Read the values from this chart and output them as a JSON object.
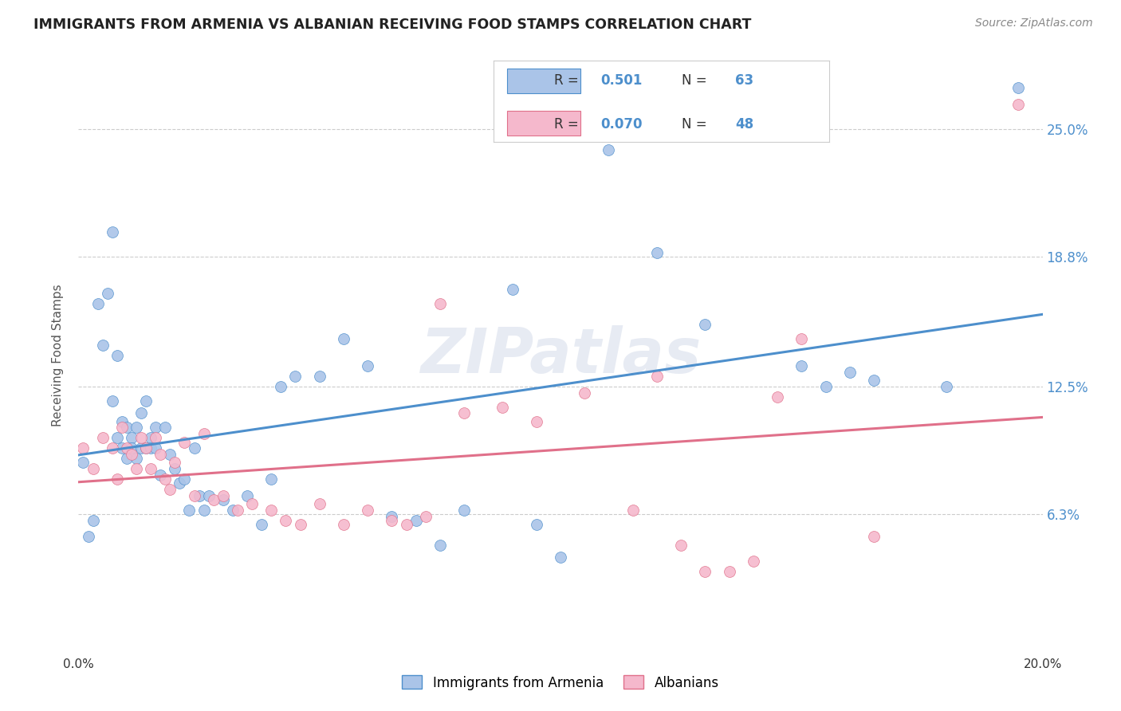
{
  "title": "IMMIGRANTS FROM ARMENIA VS ALBANIAN RECEIVING FOOD STAMPS CORRELATION CHART",
  "source": "Source: ZipAtlas.com",
  "ylabel": "Receiving Food Stamps",
  "ytick_labels": [
    "6.3%",
    "12.5%",
    "18.8%",
    "25.0%"
  ],
  "ytick_values": [
    0.063,
    0.125,
    0.188,
    0.25
  ],
  "xlim": [
    0.0,
    0.2
  ],
  "ylim": [
    -0.005,
    0.285
  ],
  "armenia_R": "0.501",
  "armenia_N": "63",
  "albania_R": "0.070",
  "albania_N": "48",
  "armenia_color": "#aac4e8",
  "albania_color": "#f5b8cc",
  "armenia_line_color": "#4d8fcc",
  "albania_line_color": "#e0708a",
  "text_blue_color": "#4d8fcc",
  "legend_label_armenia": "Immigrants from Armenia",
  "legend_label_albania": "Albanians",
  "watermark": "ZIPatlas",
  "background_color": "#ffffff",
  "armenia_x": [
    0.001,
    0.002,
    0.003,
    0.004,
    0.005,
    0.006,
    0.007,
    0.007,
    0.008,
    0.008,
    0.009,
    0.009,
    0.01,
    0.01,
    0.011,
    0.011,
    0.012,
    0.012,
    0.013,
    0.013,
    0.014,
    0.014,
    0.015,
    0.015,
    0.016,
    0.016,
    0.017,
    0.018,
    0.019,
    0.02,
    0.021,
    0.022,
    0.023,
    0.024,
    0.025,
    0.026,
    0.027,
    0.03,
    0.032,
    0.035,
    0.038,
    0.04,
    0.042,
    0.045,
    0.05,
    0.055,
    0.06,
    0.065,
    0.07,
    0.075,
    0.08,
    0.09,
    0.095,
    0.1,
    0.11,
    0.12,
    0.13,
    0.15,
    0.155,
    0.16,
    0.165,
    0.18,
    0.195
  ],
  "armenia_y": [
    0.088,
    0.052,
    0.06,
    0.165,
    0.145,
    0.17,
    0.118,
    0.2,
    0.1,
    0.14,
    0.108,
    0.095,
    0.105,
    0.09,
    0.1,
    0.095,
    0.105,
    0.09,
    0.095,
    0.112,
    0.095,
    0.118,
    0.1,
    0.095,
    0.105,
    0.095,
    0.082,
    0.105,
    0.092,
    0.085,
    0.078,
    0.08,
    0.065,
    0.095,
    0.072,
    0.065,
    0.072,
    0.07,
    0.065,
    0.072,
    0.058,
    0.08,
    0.125,
    0.13,
    0.13,
    0.148,
    0.135,
    0.062,
    0.06,
    0.048,
    0.065,
    0.172,
    0.058,
    0.042,
    0.24,
    0.19,
    0.155,
    0.135,
    0.125,
    0.132,
    0.128,
    0.125,
    0.27
  ],
  "albania_x": [
    0.001,
    0.003,
    0.005,
    0.007,
    0.008,
    0.009,
    0.01,
    0.011,
    0.012,
    0.013,
    0.014,
    0.015,
    0.016,
    0.017,
    0.018,
    0.019,
    0.02,
    0.022,
    0.024,
    0.026,
    0.028,
    0.03,
    0.033,
    0.036,
    0.04,
    0.043,
    0.046,
    0.05,
    0.055,
    0.06,
    0.065,
    0.068,
    0.072,
    0.075,
    0.08,
    0.088,
    0.095,
    0.105,
    0.115,
    0.12,
    0.125,
    0.13,
    0.135,
    0.14,
    0.145,
    0.15,
    0.165,
    0.195
  ],
  "albania_y": [
    0.095,
    0.085,
    0.1,
    0.095,
    0.08,
    0.105,
    0.095,
    0.092,
    0.085,
    0.1,
    0.095,
    0.085,
    0.1,
    0.092,
    0.08,
    0.075,
    0.088,
    0.098,
    0.072,
    0.102,
    0.07,
    0.072,
    0.065,
    0.068,
    0.065,
    0.06,
    0.058,
    0.068,
    0.058,
    0.065,
    0.06,
    0.058,
    0.062,
    0.165,
    0.112,
    0.115,
    0.108,
    0.122,
    0.065,
    0.13,
    0.048,
    0.035,
    0.035,
    0.04,
    0.12,
    0.148,
    0.052,
    0.262
  ]
}
